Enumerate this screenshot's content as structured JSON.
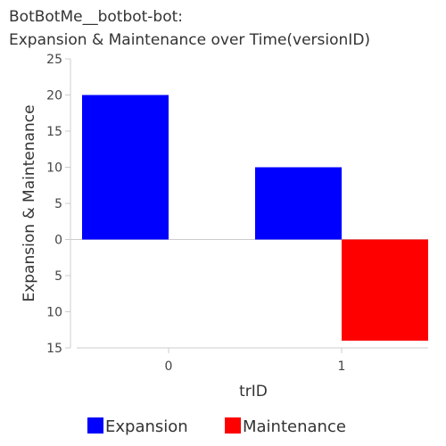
{
  "chart_data": {
    "type": "bar",
    "title_lines": [
      "BotBotMe__botbot-bot:",
      "Expansion & Maintenance over Time(versionID)"
    ],
    "xlabel": "trID",
    "ylabel": "Expansion & Maintenance",
    "categories": [
      "0",
      "1"
    ],
    "series": [
      {
        "name": "Expansion",
        "color": "#0000ff",
        "values": [
          20,
          10
        ]
      },
      {
        "name": "Maintenance",
        "color": "#ff0000",
        "values": [
          0,
          -14
        ]
      }
    ],
    "y_ticks": [
      {
        "value": 25,
        "label": "25"
      },
      {
        "value": 20,
        "label": "20"
      },
      {
        "value": 15,
        "label": "15"
      },
      {
        "value": 10,
        "label": "10"
      },
      {
        "value": 5,
        "label": "5"
      },
      {
        "value": 0,
        "label": "0"
      },
      {
        "value": -5,
        "label": "5"
      },
      {
        "value": -10,
        "label": "10"
      },
      {
        "value": -15,
        "label": "15"
      }
    ],
    "ylim": [
      -15,
      25
    ],
    "grid": false,
    "legend_position": "bottom"
  }
}
